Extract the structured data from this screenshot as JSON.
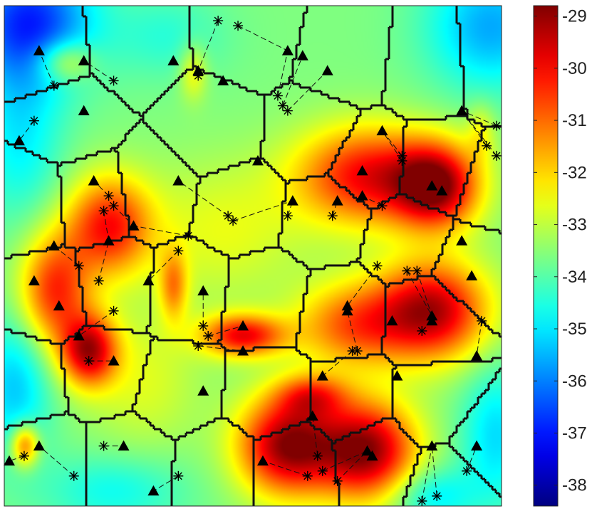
{
  "chart_data": {
    "type": "heatmap",
    "title": "",
    "xlabel": "",
    "ylabel": "",
    "colormap": "jet",
    "colorbar": {
      "range": [
        -38.4,
        -28.8
      ],
      "ticks": [
        -29,
        -30,
        -31,
        -32,
        -33,
        -34,
        -35,
        -36,
        -37,
        -38
      ],
      "tick_labels": [
        "-29",
        "-30",
        "-31",
        "-32",
        "-33",
        "-34",
        "-35",
        "-36",
        "-37",
        "-38"
      ]
    },
    "background_level": -33.6,
    "hotspots": [
      {
        "x": 0.57,
        "y": 0.88,
        "value": -29.0,
        "sx": 0.07,
        "sy": 0.07
      },
      {
        "x": 0.7,
        "y": 0.64,
        "value": -31.0,
        "sx": 0.08,
        "sy": 0.06
      },
      {
        "x": 0.87,
        "y": 0.36,
        "value": -29.3,
        "sx": 0.06,
        "sy": 0.06
      },
      {
        "x": 0.73,
        "y": 0.34,
        "value": -30.0,
        "sx": 0.1,
        "sy": 0.07
      },
      {
        "x": 0.86,
        "y": 0.61,
        "value": -29.3,
        "sx": 0.08,
        "sy": 0.07
      },
      {
        "x": 0.73,
        "y": 0.89,
        "value": -29.0,
        "sx": 0.07,
        "sy": 0.07
      },
      {
        "x": 0.48,
        "y": 0.66,
        "value": -30.0,
        "sx": 0.06,
        "sy": 0.03
      },
      {
        "x": 0.21,
        "y": 0.44,
        "value": -30.2,
        "sx": 0.06,
        "sy": 0.07
      },
      {
        "x": 0.1,
        "y": 0.57,
        "value": -30.4,
        "sx": 0.05,
        "sy": 0.08
      },
      {
        "x": 0.17,
        "y": 0.69,
        "value": -29.6,
        "sx": 0.04,
        "sy": 0.05
      },
      {
        "x": 0.04,
        "y": 0.88,
        "value": -30.8,
        "sx": 0.02,
        "sy": 0.03
      },
      {
        "x": 0.12,
        "y": 0.11,
        "value": -31.8,
        "sx": 0.04,
        "sy": 0.03
      },
      {
        "x": 0.62,
        "y": 0.78,
        "value": -31.4,
        "sx": 0.05,
        "sy": 0.03
      },
      {
        "x": 0.34,
        "y": 0.56,
        "value": -31.6,
        "sx": 0.02,
        "sy": 0.05
      },
      {
        "x": 0.38,
        "y": 0.13,
        "value": -32.3,
        "sx": 0.02,
        "sy": 0.04
      },
      {
        "x": 0.96,
        "y": 0.25,
        "value": -32.6,
        "sx": 0.02,
        "sy": 0.04
      }
    ],
    "regions": [
      {
        "x": 0.05,
        "y": 0.03,
        "value": -36.8,
        "sx": 0.09,
        "sy": 0.09
      },
      {
        "x": 0.98,
        "y": 0.04,
        "value": -35.6,
        "sx": 0.09,
        "sy": 0.09
      },
      {
        "x": 0.03,
        "y": 0.26,
        "value": -34.9,
        "sx": 0.06,
        "sy": 0.12
      },
      {
        "x": 0.02,
        "y": 0.76,
        "value": -35.3,
        "sx": 0.05,
        "sy": 0.1
      },
      {
        "x": 0.99,
        "y": 0.86,
        "value": -35.1,
        "sx": 0.05,
        "sy": 0.1
      },
      {
        "x": 0.22,
        "y": 0.97,
        "value": -34.7,
        "sx": 0.1,
        "sy": 0.05
      },
      {
        "x": 0.86,
        "y": 0.98,
        "value": -35.0,
        "sx": 0.06,
        "sy": 0.04
      },
      {
        "x": 0.33,
        "y": 0.06,
        "value": -34.4,
        "sx": 0.08,
        "sy": 0.06
      },
      {
        "x": 0.44,
        "y": 0.45,
        "value": -32.6,
        "sx": 0.12,
        "sy": 0.1
      },
      {
        "x": 0.28,
        "y": 0.75,
        "value": -32.7,
        "sx": 0.08,
        "sy": 0.1
      }
    ],
    "triangles": [
      [
        0.07,
        0.09
      ],
      [
        0.16,
        0.11
      ],
      [
        0.16,
        0.21
      ],
      [
        0.34,
        0.11
      ],
      [
        0.39,
        0.13
      ],
      [
        0.44,
        0.15
      ],
      [
        0.57,
        0.09
      ],
      [
        0.6,
        0.1
      ],
      [
        0.65,
        0.13
      ],
      [
        0.92,
        0.21
      ],
      [
        0.76,
        0.25
      ],
      [
        0.72,
        0.33
      ],
      [
        0.72,
        0.38
      ],
      [
        0.67,
        0.39
      ],
      [
        0.86,
        0.36
      ],
      [
        0.88,
        0.37
      ],
      [
        0.58,
        0.39
      ],
      [
        0.51,
        0.31
      ],
      [
        0.03,
        0.27
      ],
      [
        0.18,
        0.35
      ],
      [
        0.35,
        0.35
      ],
      [
        0.26,
        0.44
      ],
      [
        0.21,
        0.47
      ],
      [
        0.1,
        0.48
      ],
      [
        0.06,
        0.55
      ],
      [
        0.11,
        0.6
      ],
      [
        0.15,
        0.66
      ],
      [
        0.22,
        0.71
      ],
      [
        0.29,
        0.55
      ],
      [
        0.4,
        0.57
      ],
      [
        0.48,
        0.64
      ],
      [
        0.48,
        0.69
      ],
      [
        0.69,
        0.61
      ],
      [
        0.78,
        0.63
      ],
      [
        0.86,
        0.62
      ],
      [
        0.86,
        0.63
      ],
      [
        0.95,
        0.7
      ],
      [
        0.79,
        0.74
      ],
      [
        0.64,
        0.74
      ],
      [
        0.92,
        0.47
      ],
      [
        0.94,
        0.54
      ],
      [
        0.69,
        0.6
      ],
      [
        0.4,
        0.77
      ],
      [
        0.24,
        0.88
      ],
      [
        0.52,
        0.91
      ],
      [
        0.62,
        0.82
      ],
      [
        0.73,
        0.89
      ],
      [
        0.74,
        0.9
      ],
      [
        0.86,
        0.88
      ],
      [
        0.95,
        0.88
      ],
      [
        0.01,
        0.91
      ],
      [
        0.07,
        0.88
      ],
      [
        0.3,
        0.97
      ]
    ],
    "stars": [
      [
        0.1,
        0.16
      ],
      [
        0.22,
        0.15
      ],
      [
        0.06,
        0.23
      ],
      [
        0.39,
        0.14
      ],
      [
        0.43,
        0.03
      ],
      [
        0.47,
        0.04
      ],
      [
        0.55,
        0.18
      ],
      [
        0.56,
        0.2
      ],
      [
        0.57,
        0.21
      ],
      [
        0.8,
        0.3
      ],
      [
        0.8,
        0.31
      ],
      [
        0.99,
        0.24
      ],
      [
        0.97,
        0.28
      ],
      [
        0.99,
        0.3
      ],
      [
        0.21,
        0.38
      ],
      [
        0.2,
        0.41
      ],
      [
        0.22,
        0.4
      ],
      [
        0.45,
        0.42
      ],
      [
        0.46,
        0.43
      ],
      [
        0.15,
        0.52
      ],
      [
        0.19,
        0.55
      ],
      [
        0.22,
        0.61
      ],
      [
        0.37,
        0.46
      ],
      [
        0.35,
        0.49
      ],
      [
        0.66,
        0.42
      ],
      [
        0.76,
        0.4
      ],
      [
        0.81,
        0.53
      ],
      [
        0.83,
        0.53
      ],
      [
        0.75,
        0.52
      ],
      [
        0.4,
        0.64
      ],
      [
        0.41,
        0.66
      ],
      [
        0.39,
        0.68
      ],
      [
        0.7,
        0.69
      ],
      [
        0.71,
        0.69
      ],
      [
        0.84,
        0.65
      ],
      [
        0.96,
        0.63
      ],
      [
        0.17,
        0.71
      ],
      [
        0.2,
        0.88
      ],
      [
        0.14,
        0.94
      ],
      [
        0.35,
        0.94
      ],
      [
        0.63,
        0.9
      ],
      [
        0.64,
        0.93
      ],
      [
        0.67,
        0.95
      ],
      [
        0.61,
        0.94
      ],
      [
        0.84,
        0.99
      ],
      [
        0.87,
        0.98
      ],
      [
        0.93,
        0.93
      ],
      [
        0.04,
        0.9
      ],
      [
        0.57,
        0.42
      ]
    ],
    "voronoi_seeds": [
      [
        0.09,
        0.1
      ],
      [
        0.25,
        0.08
      ],
      [
        0.5,
        0.06
      ],
      [
        0.68,
        0.1
      ],
      [
        0.86,
        0.12
      ],
      [
        0.98,
        0.11
      ],
      [
        0.13,
        0.22
      ],
      [
        0.42,
        0.25
      ],
      [
        0.62,
        0.26
      ],
      [
        0.73,
        0.32
      ],
      [
        0.87,
        0.33
      ],
      [
        0.99,
        0.37
      ],
      [
        0.05,
        0.4
      ],
      [
        0.18,
        0.39
      ],
      [
        0.3,
        0.37
      ],
      [
        0.47,
        0.4
      ],
      [
        0.65,
        0.42
      ],
      [
        0.81,
        0.46
      ],
      [
        0.95,
        0.52
      ],
      [
        0.09,
        0.58
      ],
      [
        0.22,
        0.56
      ],
      [
        0.37,
        0.57
      ],
      [
        0.52,
        0.59
      ],
      [
        0.68,
        0.62
      ],
      [
        0.85,
        0.63
      ],
      [
        0.04,
        0.75
      ],
      [
        0.2,
        0.73
      ],
      [
        0.35,
        0.77
      ],
      [
        0.53,
        0.78
      ],
      [
        0.7,
        0.79
      ],
      [
        0.86,
        0.8
      ],
      [
        0.97,
        0.88
      ],
      [
        0.08,
        0.91
      ],
      [
        0.25,
        0.91
      ],
      [
        0.43,
        0.92
      ],
      [
        0.58,
        0.92
      ],
      [
        0.75,
        0.9
      ],
      [
        0.9,
        0.95
      ]
    ]
  }
}
